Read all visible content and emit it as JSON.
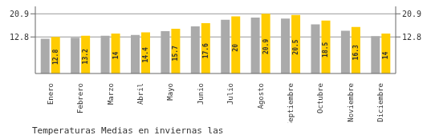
{
  "chart_data": {
    "type": "bar",
    "title": "Temperaturas Medias en inviernas las",
    "categories": [
      "Enero",
      "Febrero",
      "Marzo",
      "Abril",
      "Mayo",
      "Junio",
      "Julio",
      "Agosto",
      "Septiembre",
      "Octubre",
      "Noviembre",
      "Diciembre"
    ],
    "series": [
      {
        "color": "#AAAAAA",
        "values": [
          12.2,
          12.5,
          13.2,
          13.5,
          14.8,
          16.5,
          18.8,
          19.6,
          19.2,
          17.2,
          15.0,
          13.1
        ]
      },
      {
        "color": "#FFCC00",
        "values": [
          12.8,
          13.2,
          14.0,
          14.4,
          15.7,
          17.6,
          20.0,
          20.9,
          20.5,
          18.5,
          16.3,
          14.0
        ],
        "data_labels": true
      }
    ],
    "ylim": [
      0,
      23.5
    ],
    "yticks": [
      12.8,
      20.9
    ],
    "grid": true
  }
}
